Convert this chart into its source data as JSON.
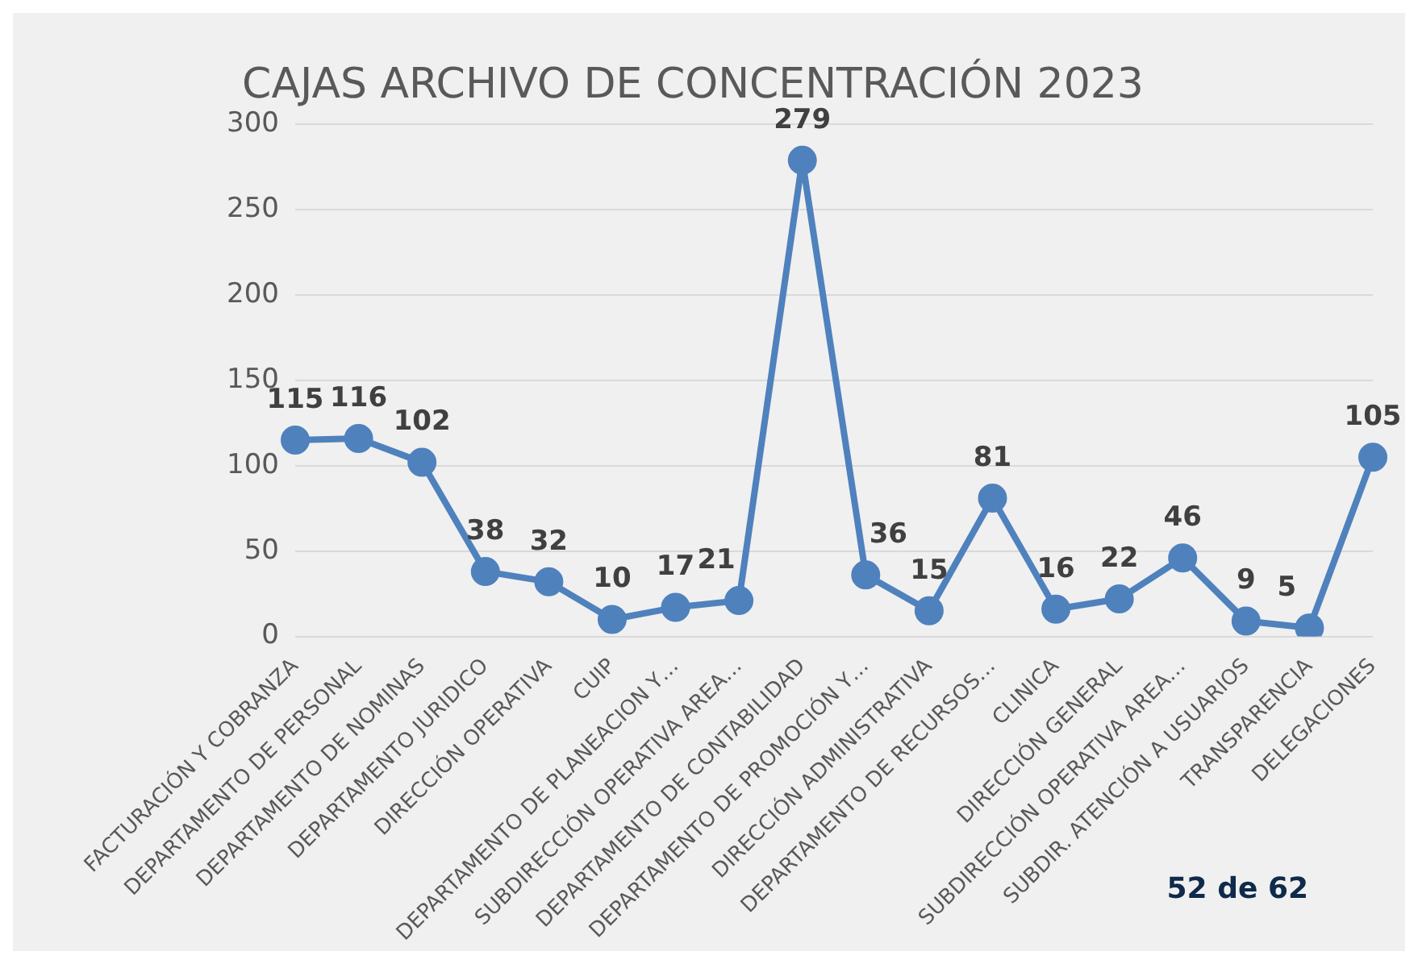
{
  "chart_data": {
    "type": "line",
    "title": "CAJAS ARCHIVO DE CONCENTRACIÓN 2023",
    "categories": [
      "FACTURACIÓN Y COBRANZA",
      "DEPARTAMENTO DE PERSONAL",
      "DEPARTAMENTO DE NOMINAS",
      "DEPARTAMENTO JURIDICO",
      "DIRECCIÓN OPERATIVA",
      "CUIP",
      "DEPARTAMENTO DE PLANEACION Y…",
      "SUBDIRECCIÓN OPERATIVA AREA…",
      "DEPARTAMENTO DE CONTABILIDAD",
      "DEPARTAMENTO DE PROMOCIÓN Y…",
      "DIRECCIÓN ADMINISTRATIVA",
      "DEPARTAMENTO DE RECURSOS…",
      "CLINICA",
      "DIRECCIÓN GENERAL",
      "SUBDIRECCIÓN OPERATIVA AREA…",
      "SUBDIR. ATENCIÓN A USUARIOS",
      "TRANSPARENCIA",
      "DELEGACIONES"
    ],
    "series": [
      {
        "color": "#4f81bd",
        "values": [
          115,
          116,
          102,
          38,
          32,
          10,
          17,
          21,
          279,
          36,
          15,
          81,
          16,
          22,
          46,
          9,
          5,
          105
        ]
      }
    ],
    "ylim": [
      0,
      300
    ],
    "yticks": [
      0,
      50,
      100,
      150,
      200,
      250,
      300
    ],
    "grid": "y",
    "legend": false,
    "marker": "circle",
    "line_style": "solid",
    "data_labels": true,
    "annotations": [
      "52 de 62"
    ]
  }
}
